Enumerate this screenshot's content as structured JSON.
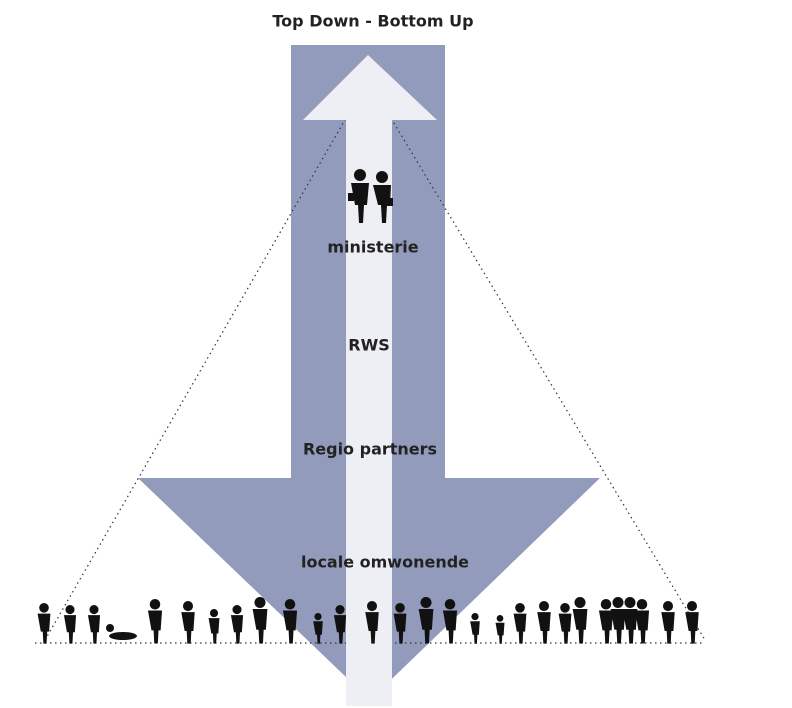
{
  "title": "Top Down - Bottom Up",
  "levels": [
    "ministerie",
    "RWS",
    "Regio partners",
    "locale omwonende"
  ]
}
